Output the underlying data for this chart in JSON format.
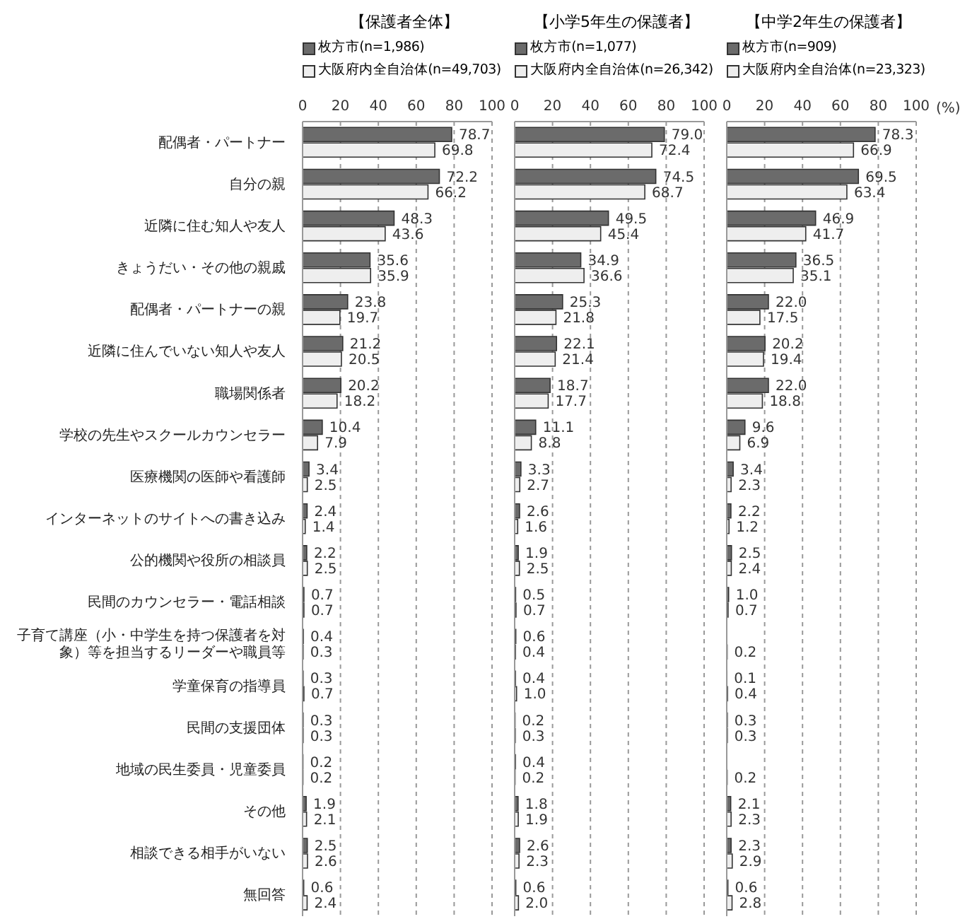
{
  "chart_data": [
    {
      "type": "bar",
      "orientation": "horizontal",
      "title": "【保護者全体】",
      "categories": [
        "配偶者・パートナー",
        "自分の親",
        "近隣に住む知人や友人",
        "きょうだい・その他の親戚",
        "配偶者・パートナーの親",
        "近隣に住んでいない知人や友人",
        "職場関係者",
        "学校の先生やスクールカウンセラー",
        "医療機関の医師や看護師",
        "インターネットのサイトへの書き込み",
        "公的機関や役所の相談員",
        "民間のカウンセラー・電話相談",
        "子育て講座（小・中学生を持つ保護者を対象）等を担当するリーダーや職員等",
        "学童保育の指導員",
        "民間の支援団体",
        "地域の民生委員・児童委員",
        "その他",
        "相談できる相手がいない",
        "無回答"
      ],
      "xlim": [
        0,
        100
      ],
      "xticks": [
        0,
        20,
        40,
        60,
        80,
        100
      ],
      "grid": "x",
      "legend": "top",
      "series": [
        {
          "name": "枚方市(n=1,986)",
          "color": "#6b6b6b",
          "values": [
            78.7,
            72.2,
            48.3,
            35.6,
            23.8,
            21.2,
            20.2,
            10.4,
            3.4,
            2.4,
            2.2,
            0.7,
            0.4,
            0.3,
            0.3,
            0.2,
            1.9,
            2.5,
            0.6
          ],
          "value_labels": [
            "78.7",
            "72.2",
            "48.3",
            "35.6",
            "23.8",
            "21.2",
            "20.2",
            "10.4",
            "3.4",
            "2.4",
            "2.2",
            "0.7",
            "0.4",
            "0.3",
            "0.3",
            "0.2",
            "1.9",
            "2.5",
            "0.6"
          ]
        },
        {
          "name": "大阪府内全自治体(n=49,703)",
          "color": "#eeeeee",
          "values": [
            69.8,
            66.2,
            43.6,
            35.9,
            19.7,
            20.5,
            18.2,
            7.9,
            2.5,
            1.4,
            2.5,
            0.7,
            0.3,
            0.7,
            0.3,
            0.2,
            2.1,
            2.6,
            2.4
          ],
          "value_labels": [
            "69.8",
            "66.2",
            "43.6",
            "35.9",
            "19.7",
            "20.5",
            "18.2",
            "7.9",
            "2.5",
            "1.4",
            "2.5",
            "0.7",
            "0.3",
            "0.7",
            "0.3",
            "0.2",
            "2.1",
            "2.6",
            "2.4"
          ]
        }
      ]
    },
    {
      "type": "bar",
      "orientation": "horizontal",
      "title": "【小学5年生の保護者】",
      "categories": [
        "配偶者・パートナー",
        "自分の親",
        "近隣に住む知人や友人",
        "きょうだい・その他の親戚",
        "配偶者・パートナーの親",
        "近隣に住んでいない知人や友人",
        "職場関係者",
        "学校の先生やスクールカウンセラー",
        "医療機関の医師や看護師",
        "インターネットのサイトへの書き込み",
        "公的機関や役所の相談員",
        "民間のカウンセラー・電話相談",
        "子育て講座（小・中学生を持つ保護者を対象）等を担当するリーダーや職員等",
        "学童保育の指導員",
        "民間の支援団体",
        "地域の民生委員・児童委員",
        "その他",
        "相談できる相手がいない",
        "無回答"
      ],
      "xlim": [
        0,
        100
      ],
      "xticks": [
        0,
        20,
        40,
        60,
        80,
        100
      ],
      "grid": "x",
      "legend": "top",
      "tick_labels": "x",
      "series": [
        {
          "name": "枚方市(n=1,077)",
          "color": "#6b6b6b",
          "values": [
            79.0,
            74.5,
            49.5,
            34.9,
            25.3,
            22.1,
            18.7,
            11.1,
            3.3,
            2.6,
            1.9,
            0.5,
            0.6,
            0.4,
            0.2,
            0.4,
            1.8,
            2.6,
            0.6
          ],
          "value_labels": [
            "79.0",
            "74.5",
            "49.5",
            "34.9",
            "25.3",
            "22.1",
            "18.7",
            "11.1",
            "3.3",
            "2.6",
            "1.9",
            "0.5",
            "0.6",
            "0.4",
            "0.2",
            "0.4",
            "1.8",
            "2.6",
            "0.6"
          ]
        },
        {
          "name": "大阪府内全自治体(n=26,342)",
          "color": "#eeeeee",
          "values": [
            72.4,
            68.7,
            45.4,
            36.6,
            21.8,
            21.4,
            17.7,
            8.8,
            2.7,
            1.6,
            2.5,
            0.7,
            0.4,
            1.0,
            0.3,
            0.2,
            1.9,
            2.3,
            2.0
          ],
          "value_labels": [
            "72.4",
            "68.7",
            "45.4",
            "36.6",
            "21.8",
            "21.4",
            "17.7",
            "8.8",
            "2.7",
            "1.6",
            "2.5",
            "0.7",
            "0.4",
            "1.0",
            "0.3",
            "0.2",
            "1.9",
            "2.3",
            "2.0"
          ]
        }
      ]
    },
    {
      "type": "bar",
      "orientation": "horizontal",
      "title": "【中学2年生の保護者】",
      "xlabel": "(%)",
      "categories": [
        "配偶者・パートナー",
        "自分の親",
        "近隣に住む知人や友人",
        "きょうだい・その他の親戚",
        "配偶者・パートナーの親",
        "近隣に住んでいない知人や友人",
        "職場関係者",
        "学校の先生やスクールカウンセラー",
        "医療機関の医師や看護師",
        "インターネットのサイトへの書き込み",
        "公的機関や役所の相談員",
        "民間のカウンセラー・電話相談",
        "子育て講座（小・中学生を持つ保護者を対象）等を担当するリーダーや職員等",
        "学童保育の指導員",
        "民間の支援団体",
        "地域の民生委員・児童委員",
        "その他",
        "相談できる相手がいない",
        "無回答"
      ],
      "xlim": [
        0,
        100
      ],
      "xticks": [
        0,
        20,
        40,
        60,
        80,
        100
      ],
      "grid": "x",
      "legend": "top",
      "tick_labels": "x",
      "series": [
        {
          "name": "枚方市(n=909)",
          "color": "#6b6b6b",
          "values": [
            78.3,
            69.5,
            46.9,
            36.5,
            22.0,
            20.2,
            22.0,
            9.6,
            3.4,
            2.2,
            2.5,
            1.0,
            null,
            0.1,
            0.3,
            null,
            2.1,
            2.3,
            0.6
          ],
          "value_labels": [
            "78.3",
            "69.5",
            "46.9",
            "36.5",
            "22.0",
            "20.2",
            "22.0",
            "9.6",
            "3.4",
            "2.2",
            "2.5",
            "1.0",
            null,
            "0.1",
            "0.3",
            null,
            "2.1",
            "2.3",
            "0.6"
          ]
        },
        {
          "name": "大阪府内全自治体(n=23,323)",
          "color": "#eeeeee",
          "values": [
            66.9,
            63.4,
            41.7,
            35.1,
            17.5,
            19.4,
            18.8,
            6.9,
            2.3,
            1.2,
            2.4,
            0.7,
            0.2,
            0.4,
            0.3,
            0.2,
            2.3,
            2.9,
            2.8
          ],
          "value_labels": [
            "66.9",
            "63.4",
            "41.7",
            "35.1",
            "17.5",
            "19.4",
            "18.8",
            "6.9",
            "2.3",
            "1.2",
            "2.4",
            "0.7",
            "0.2",
            "0.4",
            "0.3",
            "0.2",
            "2.3",
            "2.9",
            "2.8"
          ]
        }
      ]
    }
  ]
}
